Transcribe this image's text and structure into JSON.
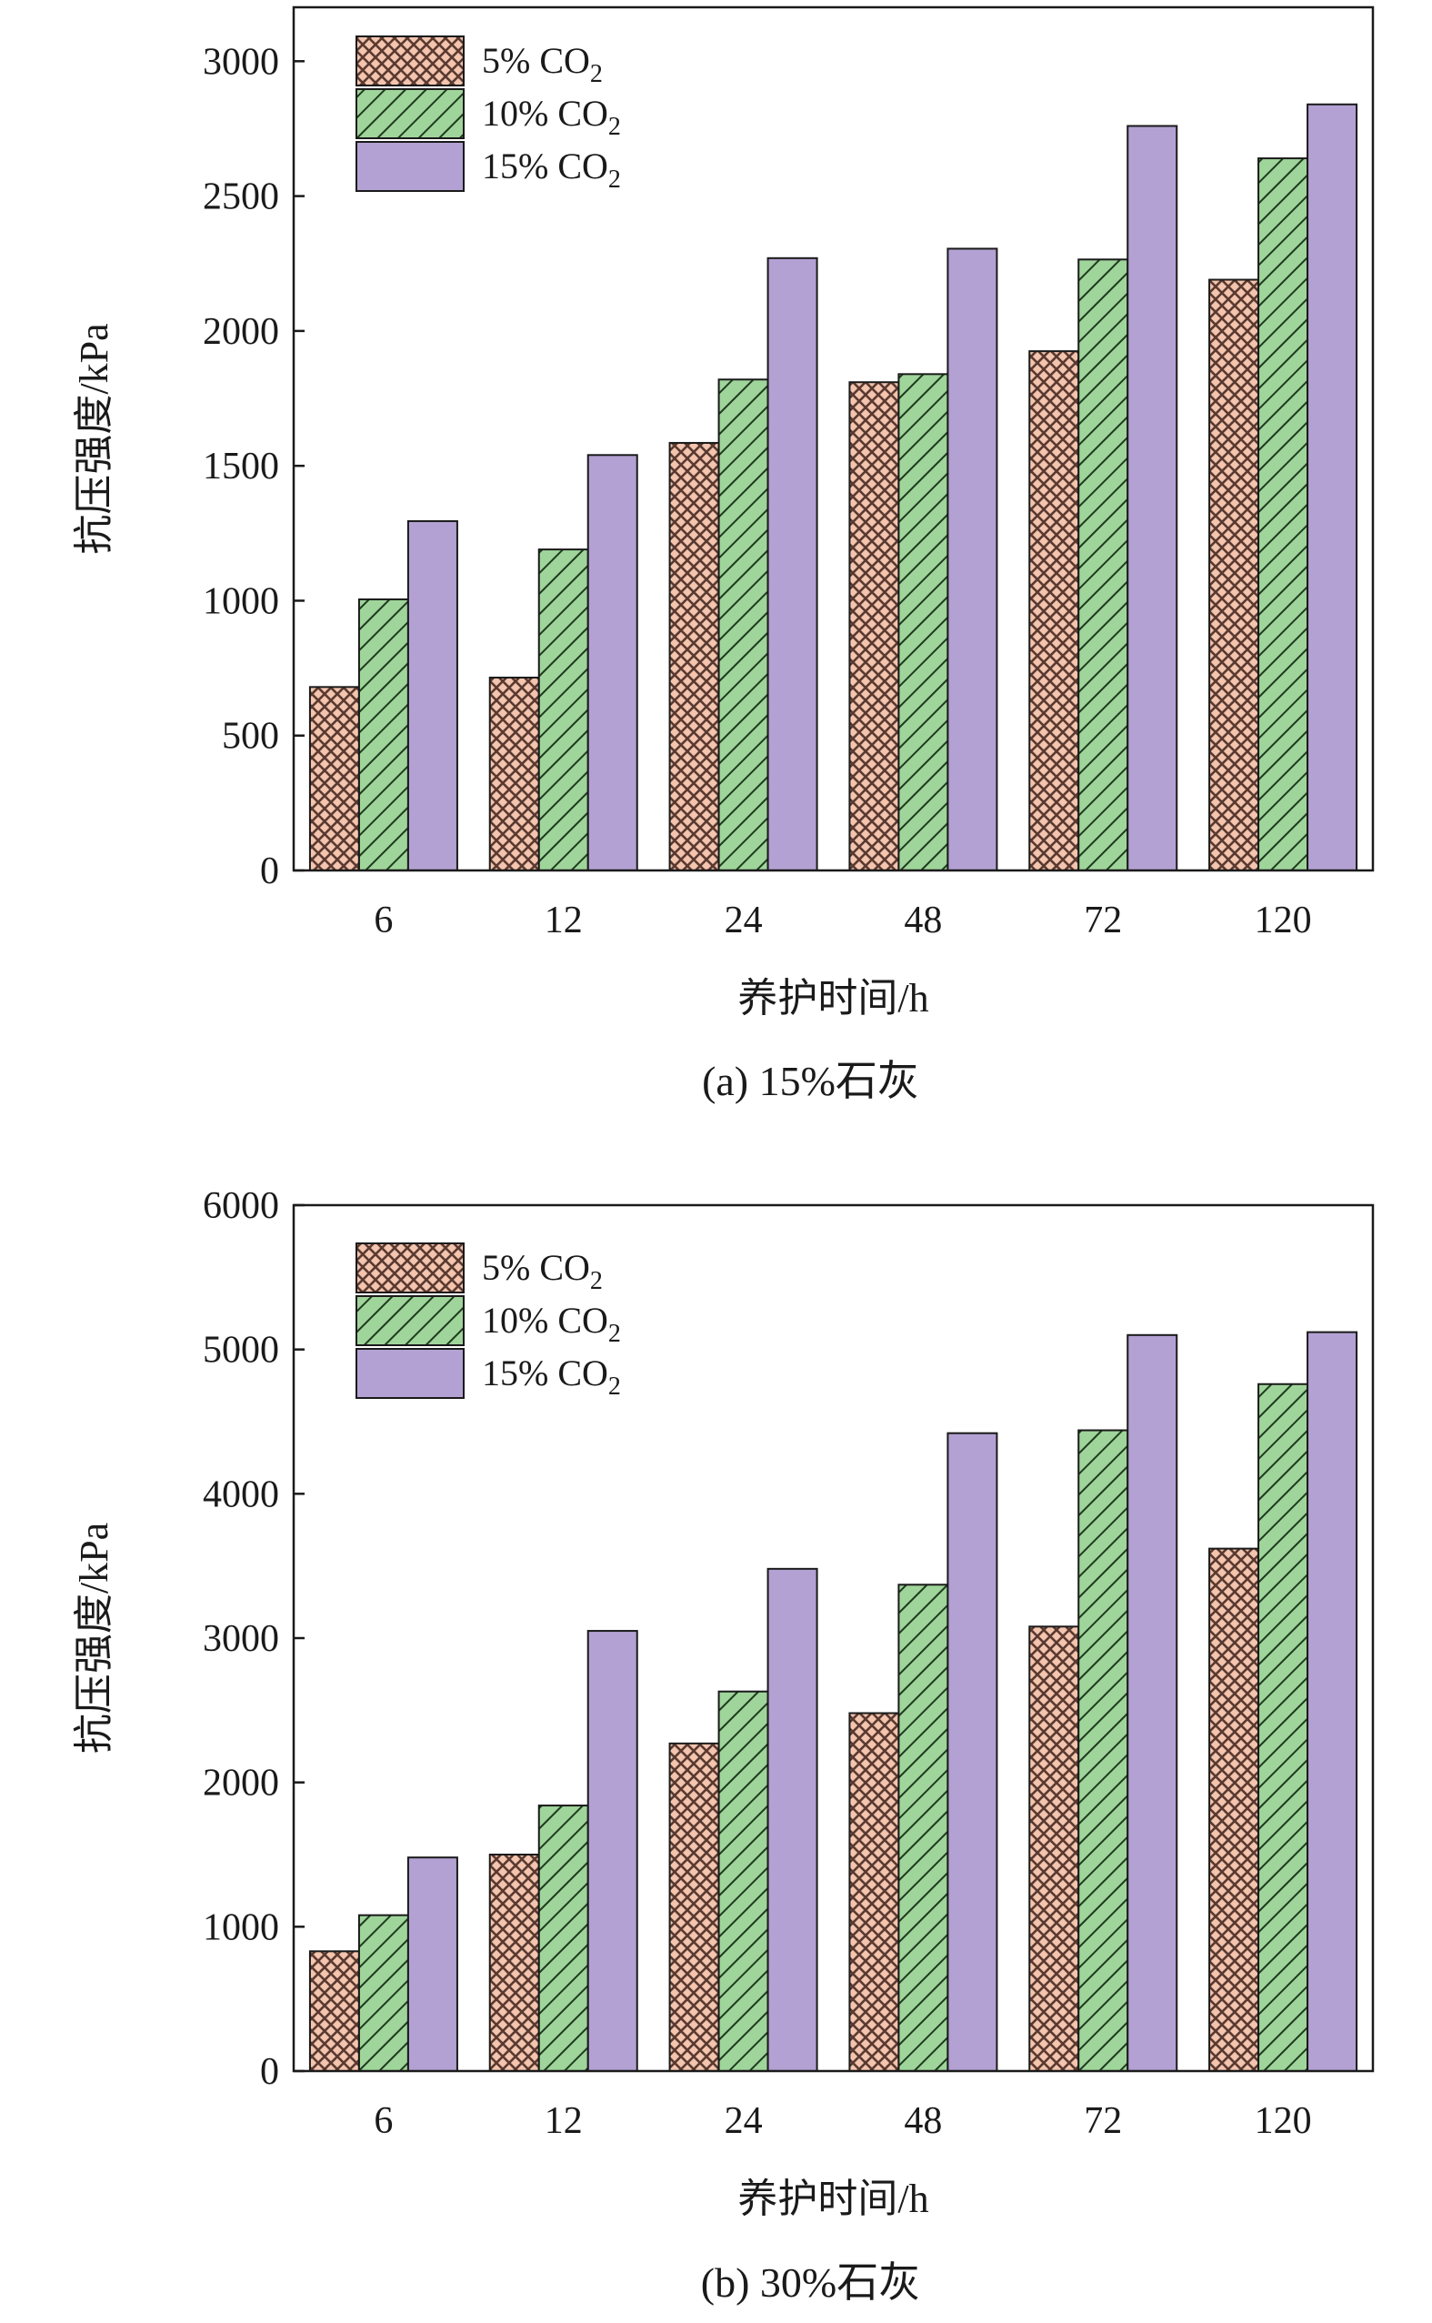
{
  "colors": {
    "series_5": "#f3c4ae",
    "series_5_hatch": "#5a3a30",
    "series_10": "#9fd59a",
    "series_10_hatch": "#1f3a1f",
    "series_15": "#b3a1d3",
    "axis": "#1a1a1a"
  },
  "chart_data": [
    {
      "type": "bar",
      "caption": "(a) 15%石灰",
      "xlabel": "养护时间/h",
      "ylabel": "抗压强度/kPa",
      "categories": [
        "6",
        "12",
        "24",
        "48",
        "72",
        "120"
      ],
      "ylim": [
        0,
        3200
      ],
      "yticks": [
        0,
        500,
        1000,
        1500,
        2000,
        2500,
        3000
      ],
      "legend_position": "top-left",
      "grid": false,
      "series": [
        {
          "name": "5% CO",
          "subscript": "2",
          "values": [
            680,
            715,
            1585,
            1810,
            1925,
            2190
          ]
        },
        {
          "name": "10% CO",
          "subscript": "2",
          "values": [
            1005,
            1190,
            1820,
            1840,
            2265,
            2640
          ]
        },
        {
          "name": "15% CO",
          "subscript": "2",
          "values": [
            1295,
            1540,
            2270,
            2305,
            2760,
            2840
          ]
        }
      ]
    },
    {
      "type": "bar",
      "caption": "(b) 30%石灰",
      "xlabel": "养护时间/h",
      "ylabel": "抗压强度/kPa",
      "categories": [
        "6",
        "12",
        "24",
        "48",
        "72",
        "120"
      ],
      "ylim": [
        0,
        6000
      ],
      "yticks": [
        0,
        1000,
        2000,
        3000,
        4000,
        5000,
        6000
      ],
      "legend_position": "top-left",
      "grid": false,
      "series": [
        {
          "name": "5% CO",
          "subscript": "2",
          "values": [
            830,
            1500,
            2270,
            2480,
            3080,
            3620
          ]
        },
        {
          "name": "10% CO",
          "subscript": "2",
          "values": [
            1080,
            1840,
            2630,
            3370,
            4440,
            4760
          ]
        },
        {
          "name": "15% CO",
          "subscript": "2",
          "values": [
            1480,
            3050,
            3480,
            4420,
            5100,
            5120
          ]
        }
      ]
    }
  ]
}
